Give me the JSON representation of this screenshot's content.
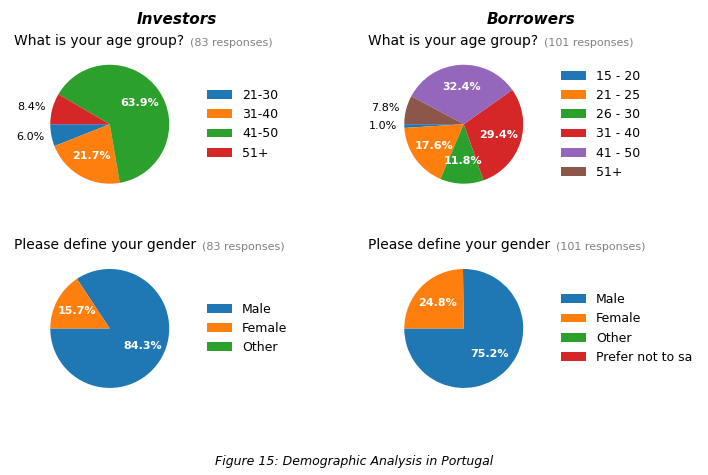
{
  "caption": "Figure 15: Demographic Analysis in Portugal",
  "chart_data": [
    {
      "type": "pie",
      "title": "Investors",
      "subtitle": "What is your age group?",
      "annotations": [
        "(83 responses)"
      ],
      "categories": [
        "21-30",
        "31-40",
        "41-50",
        "51+"
      ],
      "values": [
        6.0,
        21.7,
        63.9,
        8.4
      ],
      "value_labels": [
        "6.0%",
        "21.7%",
        "63.9%",
        "8.4%"
      ],
      "data_labels": true,
      "legend": "center left"
    },
    {
      "type": "pie",
      "title": "Borrowers",
      "subtitle": "What is your age group?",
      "annotations": [
        "(101 responses)"
      ],
      "categories": [
        "15 - 20",
        "21 - 25",
        "26 - 30",
        "31 - 40",
        "41 - 50",
        "51+"
      ],
      "values": [
        1.0,
        17.6,
        11.8,
        29.4,
        32.4,
        7.8
      ],
      "value_labels": [
        "1.0%",
        "17.6%",
        "11.8%",
        "29.4%",
        "32.4%",
        "7.8%"
      ],
      "data_labels": true,
      "legend": "center left"
    },
    {
      "type": "pie",
      "subtitle": "Please define your gender",
      "annotations": [
        "(83 responses)"
      ],
      "categories": [
        "Male",
        "Female",
        "Other"
      ],
      "values": [
        84.3,
        15.7,
        0.0
      ],
      "value_labels": [
        "84.3%",
        "15.7%",
        null
      ],
      "data_labels": true,
      "legend": "center left"
    },
    {
      "type": "pie",
      "subtitle": "Please define your gender",
      "annotations": [
        "(101 responses)"
      ],
      "categories": [
        "Male",
        "Female",
        "Other",
        "Prefer not to sa"
      ],
      "values": [
        75.2,
        24.8,
        0.0,
        0.0
      ],
      "value_labels": [
        "75.2%",
        "24.8%",
        null,
        null
      ],
      "data_labels": true,
      "legend": "center left"
    }
  ]
}
